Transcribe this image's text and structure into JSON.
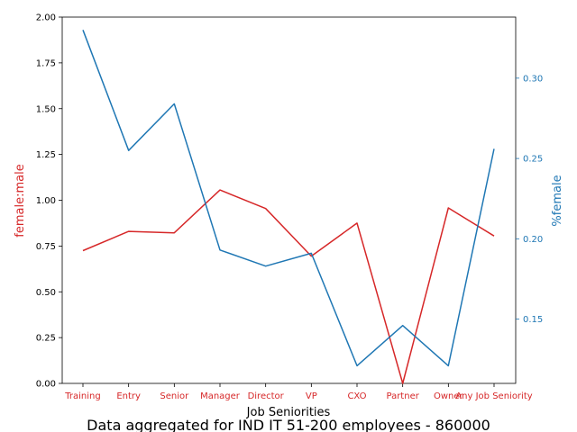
{
  "chart_data": {
    "type": "line",
    "xlabel": "Job Seniorities",
    "categories": [
      "Training",
      "Entry",
      "Senior",
      "Manager",
      "Director",
      "VP",
      "CXO",
      "Partner",
      "Owner",
      "Any Job Seniority"
    ],
    "caption": "Data aggregated for IND IT 51-200 employees - 860000",
    "left_axis": {
      "label": "female:male",
      "ylim": [
        0,
        2.0
      ],
      "ticks": [
        "0.00",
        "0.25",
        "0.50",
        "0.75",
        "1.00",
        "1.25",
        "1.50",
        "1.75",
        "2.00"
      ],
      "color": "#d62728"
    },
    "right_axis": {
      "label": "%female",
      "ylim": [
        0.11,
        0.338
      ],
      "ticks": [
        "0.15",
        "0.20",
        "0.25",
        "0.30"
      ],
      "color": "#1f77b4"
    },
    "series": [
      {
        "name": "female:male",
        "axis": "left",
        "color": "#d62728",
        "values": [
          0.725,
          0.83,
          0.822,
          1.056,
          0.955,
          0.695,
          0.875,
          0.0,
          0.958,
          0.805
        ]
      },
      {
        "name": "%female",
        "axis": "right",
        "color": "#1f77b4",
        "values": [
          0.33,
          0.255,
          0.284,
          0.193,
          0.183,
          0.191,
          0.121,
          0.146,
          0.121,
          0.256
        ]
      }
    ],
    "grid": false
  }
}
